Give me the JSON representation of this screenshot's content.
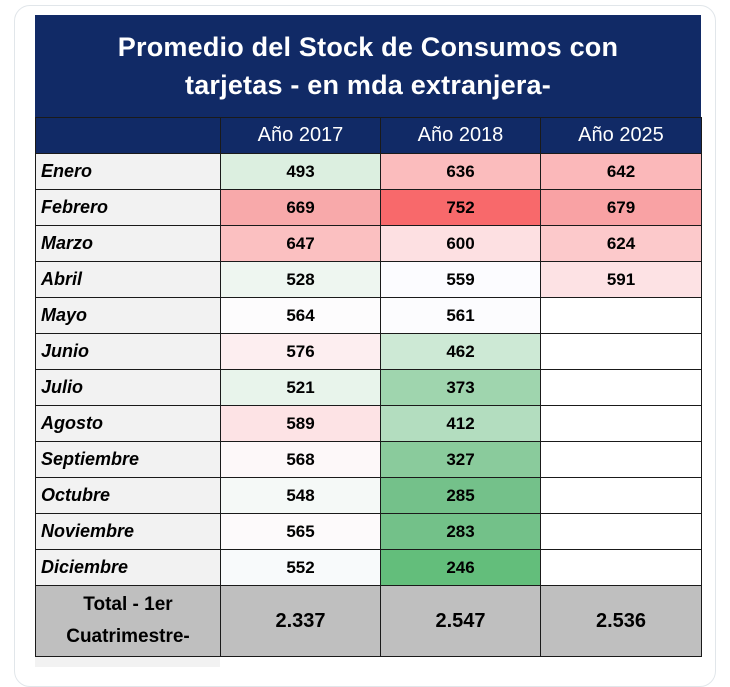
{
  "chart_data": {
    "type": "table",
    "title": "Promedio del Stock de Consumos con tarjetas - en mda extranjera-",
    "title_lines": [
      "Promedio del Stock de Consumos con",
      "tarjetas - en mda extranjera-"
    ],
    "columns": [
      "Año 2017",
      "Año 2018",
      "Año 2025"
    ],
    "rows": [
      {
        "label": "Enero",
        "values": [
          "493",
          "636",
          "642"
        ],
        "colors": [
          "#dcefe0",
          "#fbbcbd",
          "#fbb8ba"
        ]
      },
      {
        "label": "Febrero",
        "values": [
          "669",
          "752",
          "679"
        ],
        "colors": [
          "#f8a9aa",
          "#f8696b",
          "#f9a2a4"
        ]
      },
      {
        "label": "Marzo",
        "values": [
          "647",
          "600",
          "624"
        ],
        "colors": [
          "#fbc0c1",
          "#fde0e2",
          "#fcc9cb"
        ]
      },
      {
        "label": "Abril",
        "values": [
          "528",
          "559",
          "591"
        ],
        "colors": [
          "#eef6f0",
          "#fcfcff",
          "#fde2e4"
        ]
      },
      {
        "label": "Mayo",
        "values": [
          "564",
          "561",
          ""
        ],
        "colors": [
          "#fdfcfd",
          "#fcfcfe",
          "#ffffff"
        ]
      },
      {
        "label": "Junio",
        "values": [
          "576",
          "462",
          ""
        ],
        "colors": [
          "#fdeef0",
          "#cde9d5",
          "#ffffff"
        ]
      },
      {
        "label": "Julio",
        "values": [
          "521",
          "373",
          ""
        ],
        "colors": [
          "#e8f4eb",
          "#9fd5ae",
          "#ffffff"
        ]
      },
      {
        "label": "Agosto",
        "values": [
          "589",
          "412",
          ""
        ],
        "colors": [
          "#fde3e5",
          "#b3ddbf",
          "#ffffff"
        ]
      },
      {
        "label": "Septiembre",
        "values": [
          "568",
          "327",
          ""
        ],
        "colors": [
          "#fdf8f9",
          "#8acb9c",
          "#ffffff"
        ]
      },
      {
        "label": "Octubre",
        "values": [
          "548",
          "285",
          ""
        ],
        "colors": [
          "#f5f9f7",
          "#74c18a",
          "#ffffff"
        ]
      },
      {
        "label": "Noviembre",
        "values": [
          "565",
          "283",
          ""
        ],
        "colors": [
          "#fdfafb",
          "#73c189",
          "#ffffff"
        ]
      },
      {
        "label": "Diciembre",
        "values": [
          "552",
          "246",
          ""
        ],
        "colors": [
          "#f8fafb",
          "#63be7b",
          "#ffffff"
        ]
      }
    ],
    "total": {
      "label_lines": [
        "Total - 1er",
        "Cuatrimestre-"
      ],
      "values": [
        "2.337",
        "2.547",
        "2.536"
      ]
    },
    "header_color": "#112a66",
    "total_color": "#bfbfbf"
  }
}
